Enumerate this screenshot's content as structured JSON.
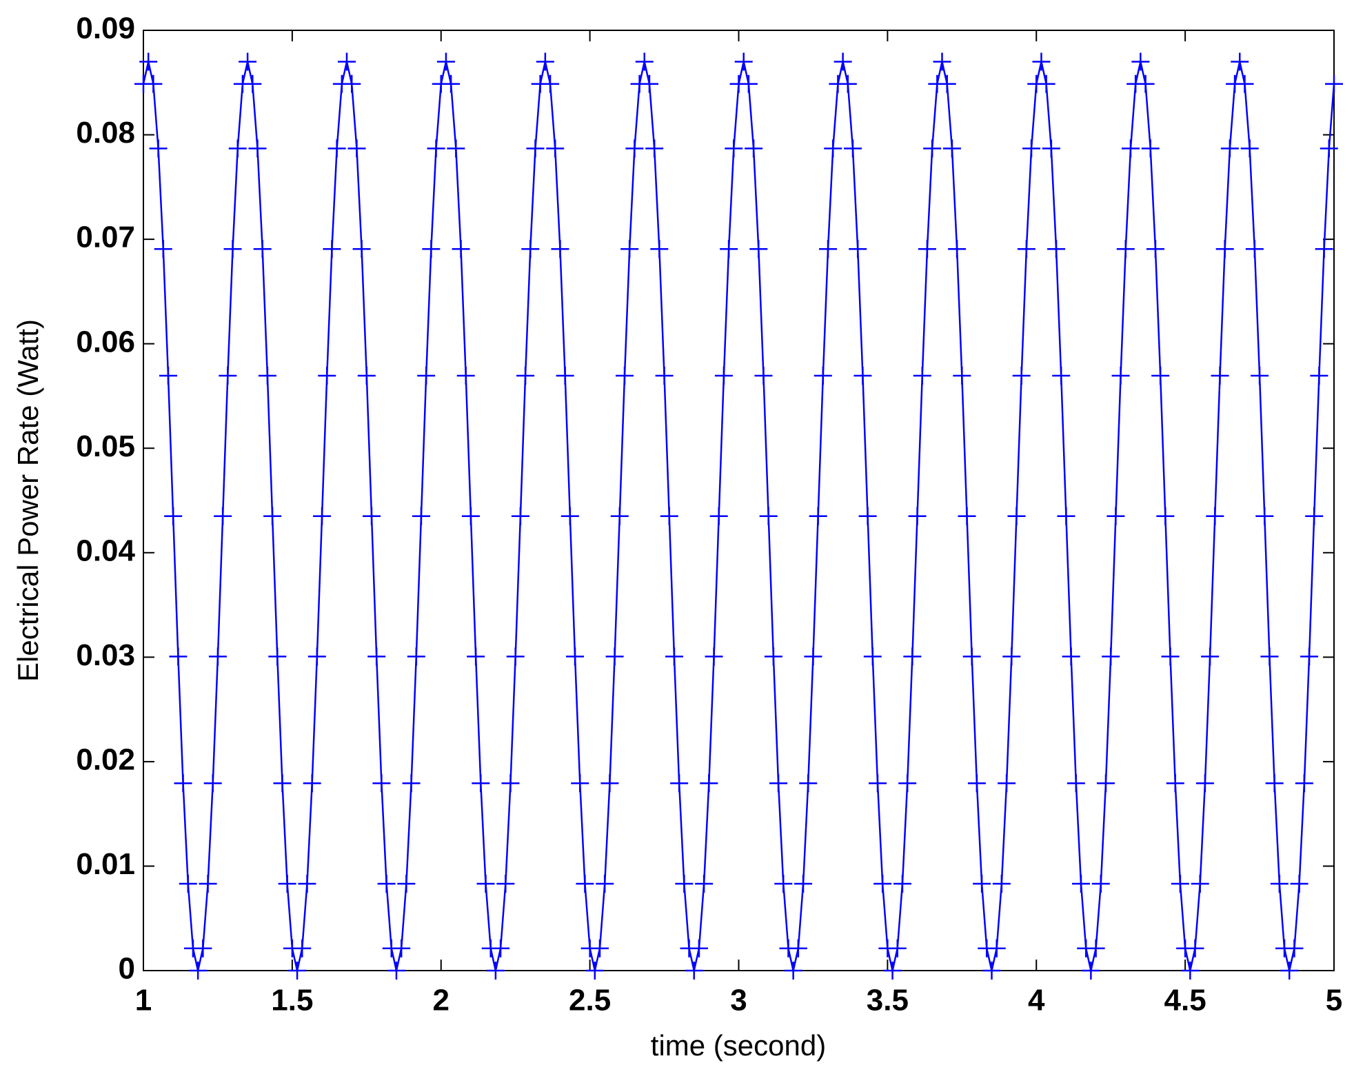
{
  "chart_data": {
    "type": "line",
    "marker": "+",
    "color": "#0000ff",
    "xlabel": "time (second)",
    "ylabel": "Electrical Power Rate (Watt)",
    "xlim": [
      1,
      5
    ],
    "xticks": [
      1,
      1.5,
      2,
      2.5,
      3,
      3.5,
      4,
      4.5,
      5
    ],
    "ylim": [
      0,
      0.09
    ],
    "yticks": [
      0,
      0.01,
      0.02,
      0.03,
      0.04,
      0.05,
      0.06,
      0.07,
      0.08,
      0.09
    ],
    "grid": false,
    "x": [
      1,
      1.0167,
      1.0333,
      1.05,
      1.0667,
      1.0833,
      1.1,
      1.1167,
      1.1333,
      1.15,
      1.1667,
      1.1833,
      1.2,
      1.2167,
      1.2333,
      1.25,
      1.2667,
      1.2833,
      1.3,
      1.3167,
      1.3333,
      1.35,
      1.3667,
      1.3833,
      1.4,
      1.4167,
      1.4333,
      1.45,
      1.4667,
      1.4833,
      1.5,
      1.5167,
      1.5333,
      1.55,
      1.5667,
      1.5833,
      1.6,
      1.6167,
      1.6333,
      1.65,
      1.6667,
      1.6833,
      1.7,
      1.7167,
      1.7333,
      1.75,
      1.7667,
      1.7833,
      1.8,
      1.8167,
      1.8333,
      1.85,
      1.8667,
      1.8833,
      1.9,
      1.9167,
      1.9333,
      1.95,
      1.9667,
      1.9833,
      2,
      2.0167,
      2.0333,
      2.05,
      2.0667,
      2.0833,
      2.1,
      2.1167,
      2.1333,
      2.15,
      2.1667,
      2.1833,
      2.2,
      2.2167,
      2.2333,
      2.25,
      2.2667,
      2.2833,
      2.3,
      2.3167,
      2.3333,
      2.35,
      2.3667,
      2.3833,
      2.4,
      2.4167,
      2.4333,
      2.45,
      2.4667,
      2.4833,
      2.5,
      2.5167,
      2.5333,
      2.55,
      2.5667,
      2.5833,
      2.6,
      2.6167,
      2.6333,
      2.65,
      2.6667,
      2.6833,
      2.7,
      2.7167,
      2.7333,
      2.75,
      2.7667,
      2.7833,
      2.8,
      2.8167,
      2.8333,
      2.85,
      2.8667,
      2.8833,
      2.9,
      2.9167,
      2.9333,
      2.95,
      2.9667,
      2.9833,
      3,
      3.0167,
      3.0333,
      3.05,
      3.0667,
      3.0833,
      3.1,
      3.1167,
      3.1333,
      3.15,
      3.1667,
      3.1833,
      3.2,
      3.2167,
      3.2333,
      3.25,
      3.2667,
      3.2833,
      3.3,
      3.3167,
      3.3333,
      3.35,
      3.3667,
      3.3833,
      3.4,
      3.4167,
      3.4333,
      3.45,
      3.4667,
      3.4833,
      3.5,
      3.5167,
      3.5333,
      3.55,
      3.5667,
      3.5833,
      3.6,
      3.6167,
      3.6333,
      3.65,
      3.6667,
      3.6833,
      3.7,
      3.7167,
      3.7333,
      3.75,
      3.7667,
      3.7833,
      3.8,
      3.8167,
      3.8333,
      3.85,
      3.8667,
      3.8833,
      3.9,
      3.9167,
      3.9333,
      3.95,
      3.9667,
      3.9833,
      4,
      4.0167,
      4.0333,
      4.05,
      4.0667,
      4.0833,
      4.1,
      4.1167,
      4.1333,
      4.15,
      4.1667,
      4.1833,
      4.2,
      4.2167,
      4.2333,
      4.25,
      4.2667,
      4.2833,
      4.3,
      4.3167,
      4.3333,
      4.35,
      4.3667,
      4.3833,
      4.4,
      4.4167,
      4.4333,
      4.45,
      4.4667,
      4.4833,
      4.5,
      4.5167,
      4.5333,
      4.55,
      4.5667,
      4.5833,
      4.6,
      4.6167,
      4.6333,
      4.65,
      4.6667,
      4.6833,
      4.7,
      4.7167,
      4.7333,
      4.75,
      4.7667,
      4.7833,
      4.8,
      4.8167,
      4.8333,
      4.85,
      4.8667,
      4.8833,
      4.9,
      4.9167,
      4.9333,
      4.95,
      4.9667,
      4.9833,
      5
    ],
    "values": [
      0.08487,
      0.087,
      0.08487,
      0.07869,
      0.06907,
      0.05694,
      0.0435,
      0.03006,
      0.01793,
      0.00831,
      0.00213,
      0,
      0.00213,
      0.00831,
      0.01793,
      0.03006,
      0.0435,
      0.05694,
      0.06907,
      0.07869,
      0.08487,
      0.087,
      0.08487,
      0.07869,
      0.06907,
      0.05694,
      0.0435,
      0.03006,
      0.01793,
      0.00831,
      0.00213,
      0,
      0.00213,
      0.00831,
      0.01793,
      0.03006,
      0.0435,
      0.05694,
      0.06907,
      0.07869,
      0.08487,
      0.087,
      0.08487,
      0.07869,
      0.06907,
      0.05694,
      0.0435,
      0.03006,
      0.01793,
      0.00831,
      0.00213,
      0,
      0.00213,
      0.00831,
      0.01793,
      0.03006,
      0.0435,
      0.05694,
      0.06907,
      0.07869,
      0.08487,
      0.087,
      0.08487,
      0.07869,
      0.06907,
      0.05694,
      0.0435,
      0.03006,
      0.01793,
      0.00831,
      0.00213,
      0,
      0.00213,
      0.00831,
      0.01793,
      0.03006,
      0.0435,
      0.05694,
      0.06907,
      0.07869,
      0.08487,
      0.087,
      0.08487,
      0.07869,
      0.06907,
      0.05694,
      0.0435,
      0.03006,
      0.01793,
      0.00831,
      0.00213,
      0,
      0.00213,
      0.00831,
      0.01793,
      0.03006,
      0.0435,
      0.05694,
      0.06907,
      0.07869,
      0.08487,
      0.087,
      0.08487,
      0.07869,
      0.06907,
      0.05694,
      0.0435,
      0.03006,
      0.01793,
      0.00831,
      0.00213,
      0,
      0.00213,
      0.00831,
      0.01793,
      0.03006,
      0.0435,
      0.05694,
      0.06907,
      0.07869,
      0.08487,
      0.087,
      0.08487,
      0.07869,
      0.06907,
      0.05694,
      0.0435,
      0.03006,
      0.01793,
      0.00831,
      0.00213,
      0,
      0.00213,
      0.00831,
      0.01793,
      0.03006,
      0.0435,
      0.05694,
      0.06907,
      0.07869,
      0.08487,
      0.087,
      0.08487,
      0.07869,
      0.06907,
      0.05694,
      0.0435,
      0.03006,
      0.01793,
      0.00831,
      0.00213,
      0,
      0.00213,
      0.00831,
      0.01793,
      0.03006,
      0.0435,
      0.05694,
      0.06907,
      0.07869,
      0.08487,
      0.087,
      0.08487,
      0.07869,
      0.06907,
      0.05694,
      0.0435,
      0.03006,
      0.01793,
      0.00831,
      0.00213,
      0,
      0.00213,
      0.00831,
      0.01793,
      0.03006,
      0.0435,
      0.05694,
      0.06907,
      0.07869,
      0.08487,
      0.087,
      0.08487,
      0.07869,
      0.06907,
      0.05694,
      0.0435,
      0.03006,
      0.01793,
      0.00831,
      0.00213,
      0,
      0.00213,
      0.00831,
      0.01793,
      0.03006,
      0.0435,
      0.05694,
      0.06907,
      0.07869,
      0.08487,
      0.087,
      0.08487,
      0.07869,
      0.06907,
      0.05694,
      0.0435,
      0.03006,
      0.01793,
      0.00831,
      0.00213,
      0,
      0.00213,
      0.00831,
      0.01793,
      0.03006,
      0.0435,
      0.05694,
      0.06907,
      0.07869,
      0.08487,
      0.087,
      0.08487,
      0.07869,
      0.06907,
      0.05694,
      0.0435,
      0.03006,
      0.01793,
      0.00831,
      0.00213,
      0,
      0.00213,
      0.00831,
      0.01793,
      0.03006,
      0.0435,
      0.05694,
      0.06907,
      0.07869,
      0.08487
    ]
  }
}
